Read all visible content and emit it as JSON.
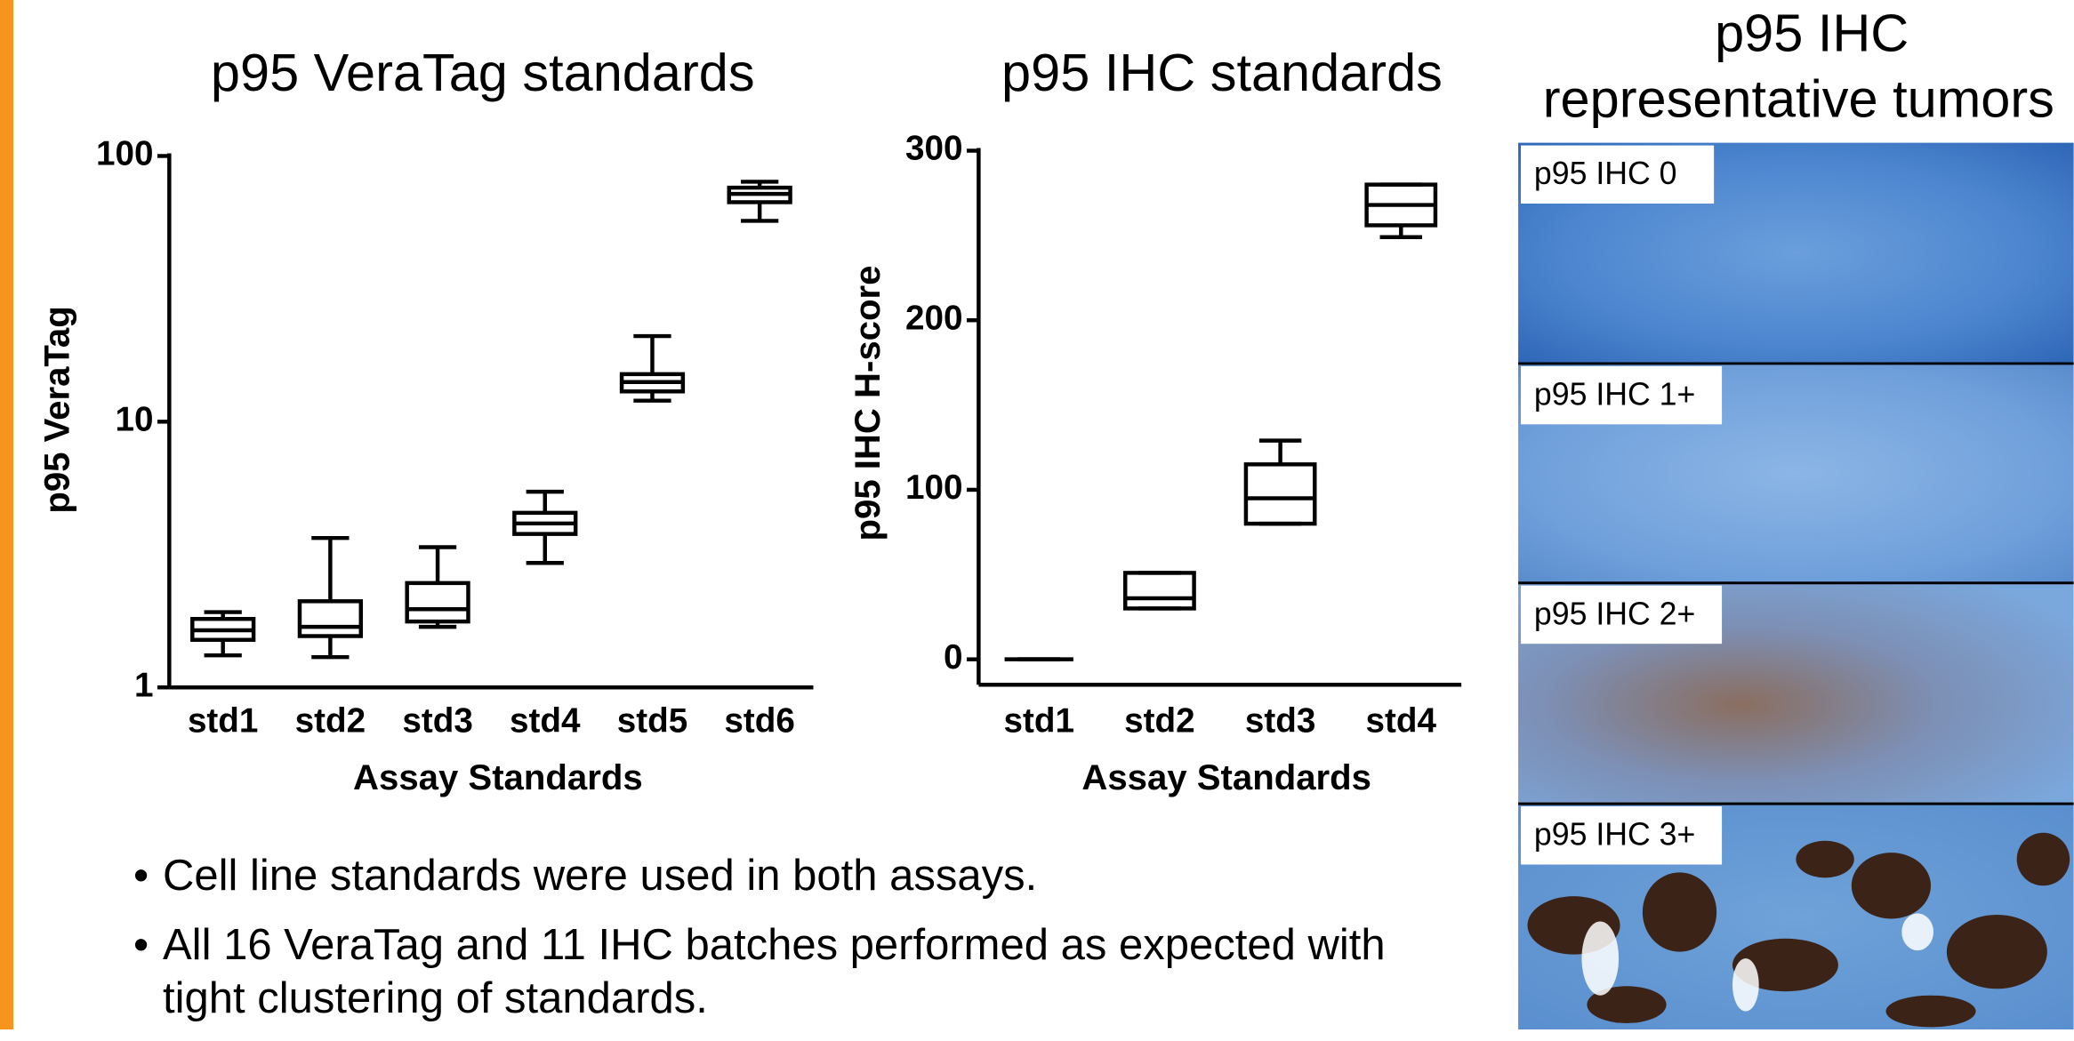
{
  "chart_data": [
    {
      "type": "box",
      "title": "p95 VeraTag standards",
      "y_label": "p95 VeraTag",
      "x_label": "Assay Standards",
      "categories": [
        "std1",
        "std2",
        "std3",
        "std4",
        "std5",
        "std6"
      ],
      "boxes": [
        {
          "min": 1.32,
          "q1": 1.51,
          "median": 1.64,
          "q3": 1.81,
          "max": 1.92
        },
        {
          "min": 1.3,
          "q1": 1.56,
          "median": 1.69,
          "q3": 2.11,
          "max": 3.65
        },
        {
          "min": 1.69,
          "q1": 1.77,
          "median": 1.97,
          "q3": 2.47,
          "max": 3.37
        },
        {
          "min": 2.94,
          "q1": 3.78,
          "median": 4.14,
          "q3": 4.54,
          "max": 5.45
        },
        {
          "min": 12,
          "q1": 13,
          "median": 14.1,
          "q3": 15.1,
          "max": 21
        },
        {
          "min": 57,
          "q1": 67,
          "median": 72,
          "q3": 76,
          "max": 80
        }
      ],
      "log_y": true,
      "ylim": [
        1,
        100
      ],
      "yticks": [
        1,
        10,
        100
      ],
      "color": "#000000"
    },
    {
      "type": "box",
      "title": "p95 IHC standards",
      "y_label": "p95 IHC H-score",
      "x_label": "Assay Standards",
      "categories": [
        "std1",
        "std2",
        "std3",
        "std4"
      ],
      "boxes": [
        {
          "min": 0,
          "q1": 0,
          "median": 0,
          "q3": 0,
          "max": 0
        },
        {
          "min": 30,
          "q1": 30,
          "median": 36,
          "q3": 51,
          "max": 51
        },
        {
          "min": 80,
          "q1": 80,
          "median": 95,
          "q3": 115,
          "max": 129
        },
        {
          "min": 249,
          "q1": 256,
          "median": 268,
          "q3": 280,
          "max": 280
        }
      ],
      "log_y": false,
      "ylim": [
        -15,
        300
      ],
      "yticks": [
        0,
        100,
        200,
        300
      ],
      "color": "#000000"
    }
  ],
  "bullets": [
    "Cell line standards were used in both assays.",
    "All 16 VeraTag and 11 IHC batches performed as expected with tight clustering of standards."
  ],
  "panel": {
    "title_lines": [
      "p95 IHC",
      "representative tumors"
    ],
    "images": [
      "p95 IHC 0",
      "p95 IHC 1+",
      "p95 IHC 2+",
      "p95 IHC 3+"
    ]
  }
}
